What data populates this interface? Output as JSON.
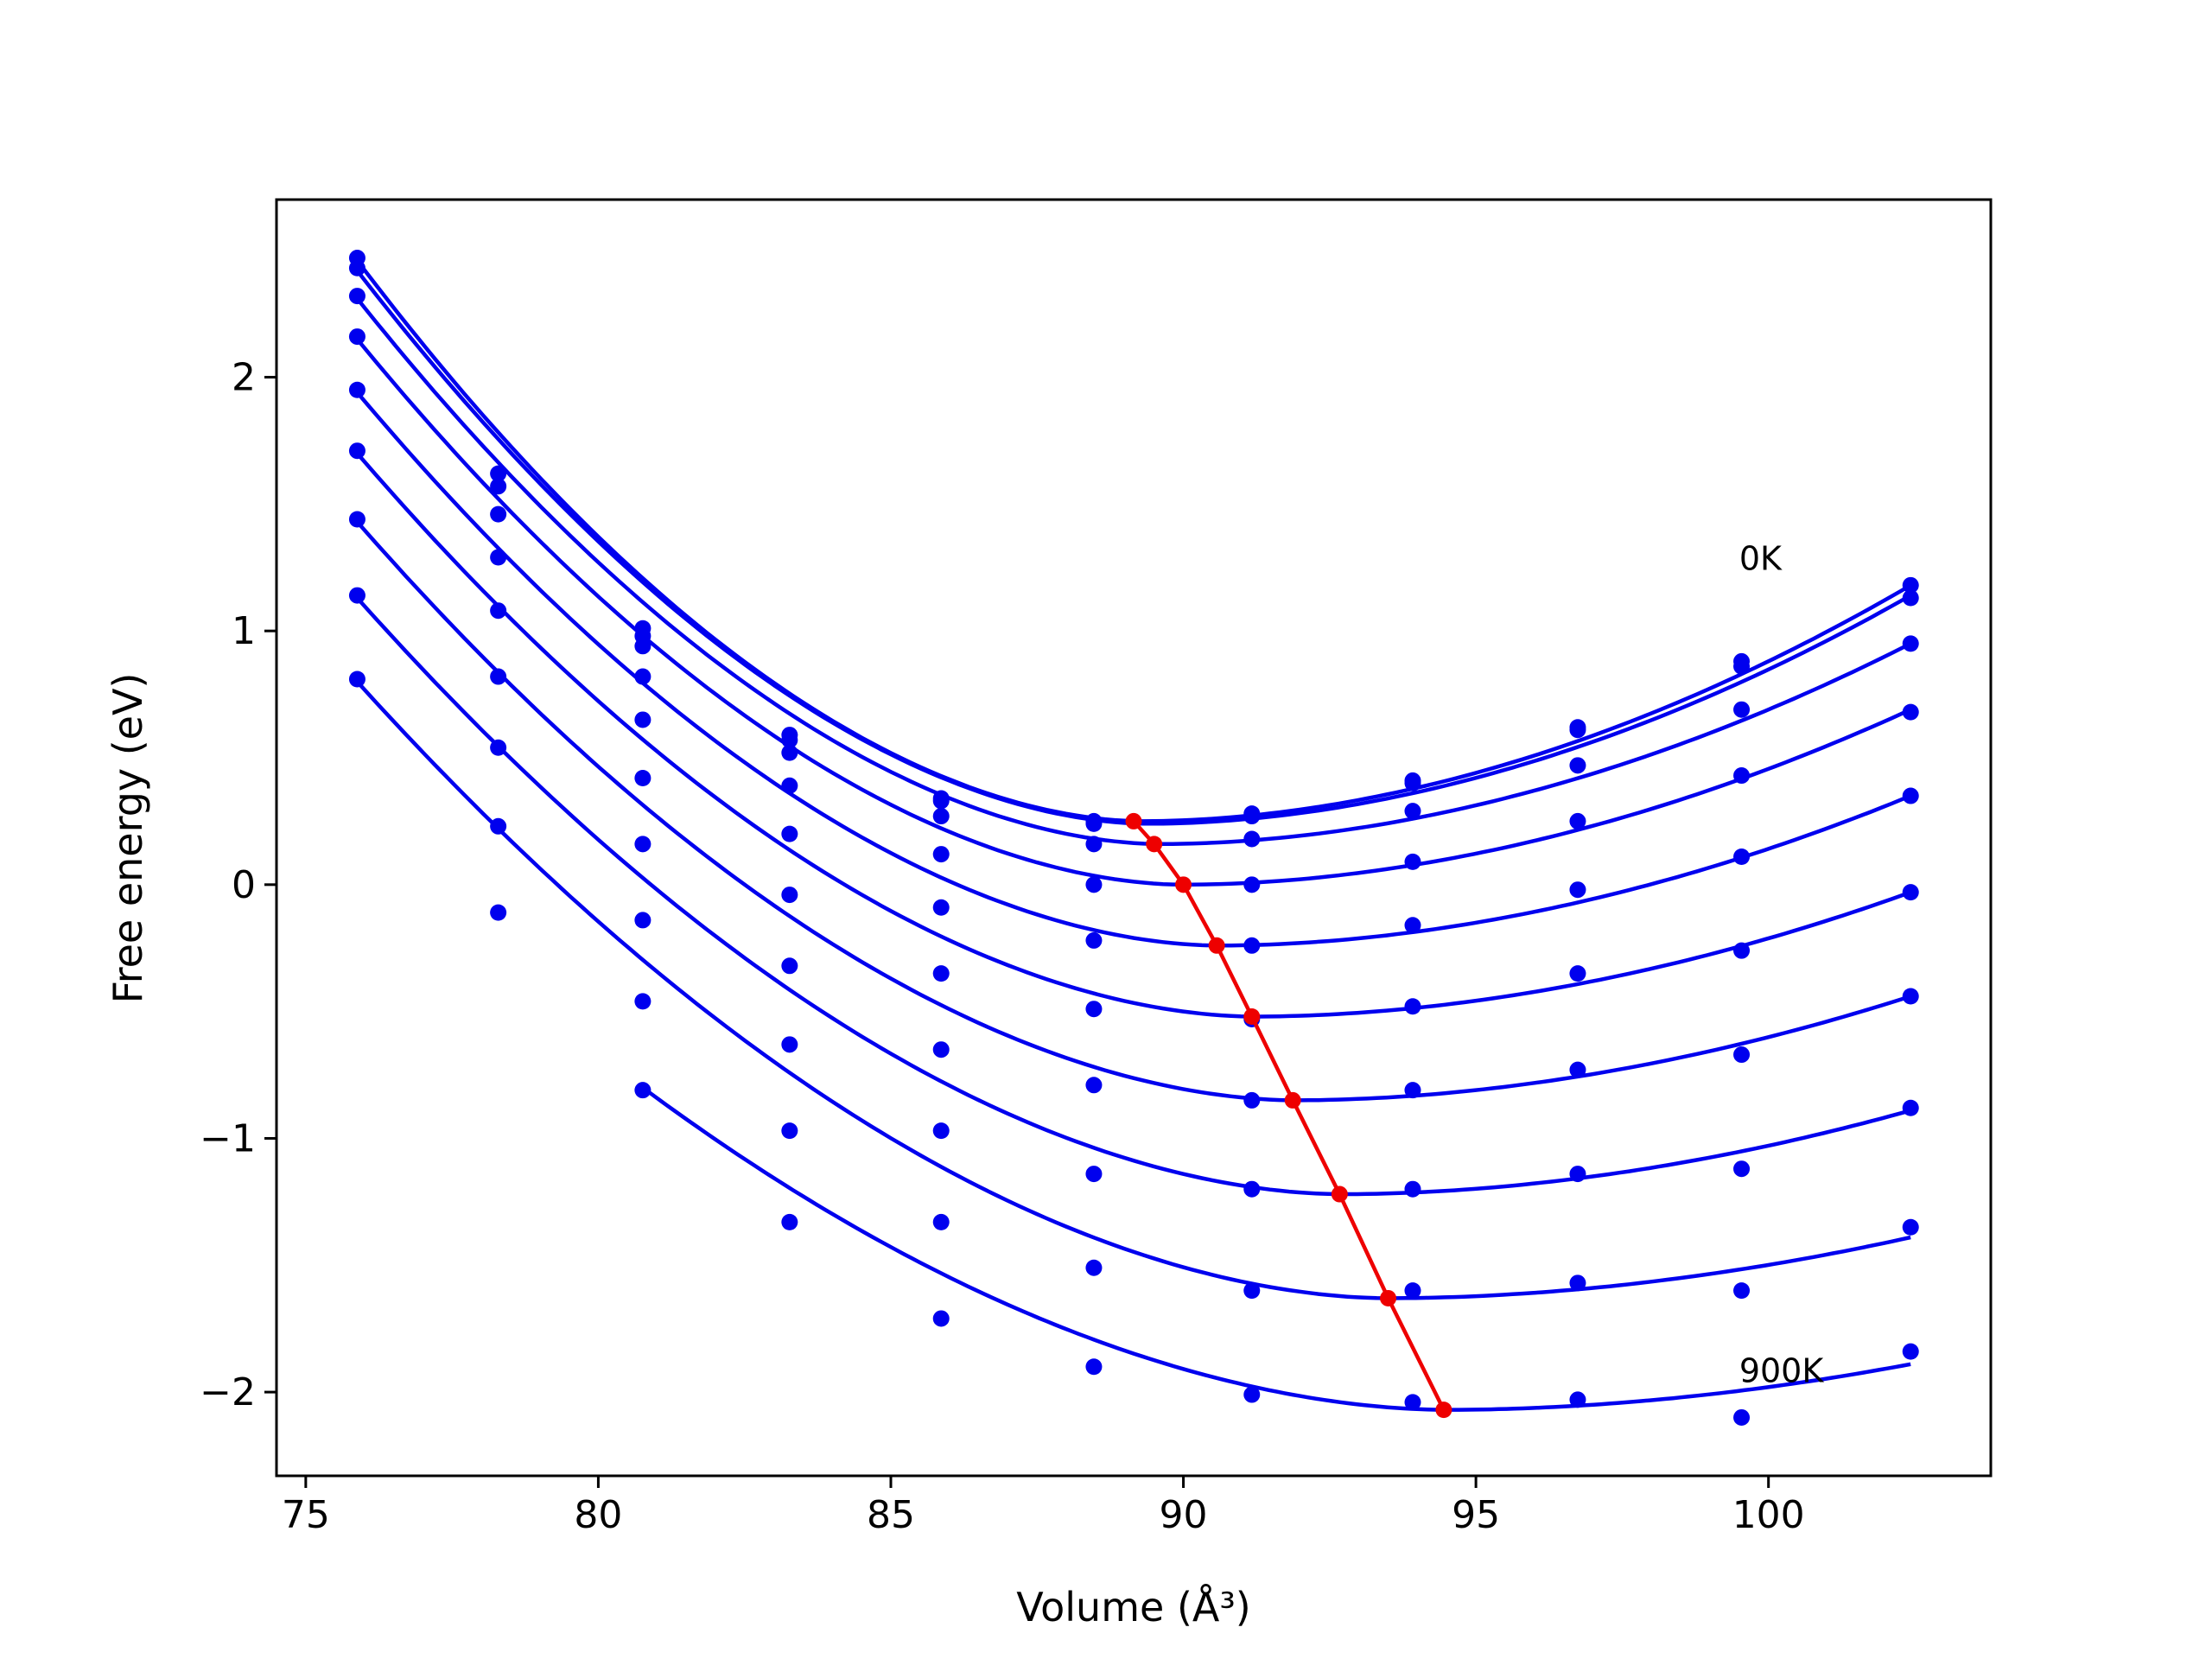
{
  "chart_data": {
    "type": "scatter",
    "title": "",
    "xlabel": "Volume (Å³)",
    "ylabel": "Free energy (eV)",
    "xlim": [
      74.5,
      103.8
    ],
    "ylim": [
      -2.33,
      2.7
    ],
    "xticks": [
      75,
      80,
      85,
      90,
      95,
      100
    ],
    "xtick_labels": [
      "75",
      "80",
      "85",
      "90",
      "95",
      "100"
    ],
    "yticks": [
      -2,
      -1,
      0,
      1,
      2
    ],
    "ytick_labels": [
      "−2",
      "−1",
      "0",
      "1",
      "2"
    ],
    "grid": false,
    "legend": "none",
    "x": [
      75.88,
      78.29,
      80.76,
      83.27,
      85.86,
      88.47,
      91.17,
      93.92,
      96.74,
      99.54,
      102.43
    ],
    "series": [
      {
        "color": "#0000ee",
        "points": [
          2.47,
          1.62,
          1.01,
          0.59,
          0.34,
          0.25,
          0.28,
          0.41,
          0.62,
          0.88,
          1.18
        ],
        "fit": {
          "e_min": 0.25,
          "v_min": 89.3,
          "left_at_75_88": 2.46,
          "right_at_102_43": 1.18
        }
      },
      {
        "color": "#0000ee",
        "points": [
          2.43,
          1.57,
          0.98,
          0.57,
          0.33,
          0.24,
          0.27,
          0.4,
          0.61,
          0.86,
          1.13
        ],
        "fit": {
          "e_min": 0.24,
          "v_min": 89.4,
          "left_at_75_88": 2.42,
          "right_at_102_43": 1.14
        }
      },
      {
        "color": "#0000ee",
        "points": [
          2.32,
          1.46,
          0.94,
          0.52,
          0.27,
          0.16,
          0.18,
          0.29,
          0.47,
          0.69,
          0.95
        ],
        "fit": {
          "e_min": 0.16,
          "v_min": 89.6,
          "left_at_75_88": 2.31,
          "right_at_102_43": 0.95
        }
      },
      {
        "color": "#0000ee",
        "points": [
          2.16,
          1.29,
          0.82,
          0.39,
          0.12,
          0.0,
          0.0,
          0.09,
          0.25,
          0.43,
          0.68
        ],
        "fit": {
          "e_min": 0.0,
          "v_min": 90.0,
          "left_at_75_88": 2.15,
          "right_at_102_43": 0.69
        }
      },
      {
        "color": "#0000ee",
        "points": [
          1.95,
          1.08,
          0.65,
          0.2,
          -0.09,
          -0.22,
          -0.24,
          -0.16,
          -0.02,
          0.11,
          0.35
        ],
        "fit": {
          "e_min": -0.24,
          "v_min": 90.6,
          "left_at_75_88": 1.94,
          "right_at_102_43": 0.35
        }
      },
      {
        "color": "#0000ee",
        "points": [
          1.71,
          0.82,
          0.42,
          -0.04,
          -0.35,
          -0.49,
          -0.53,
          -0.48,
          -0.35,
          -0.26,
          -0.03
        ],
        "fit": {
          "e_min": -0.52,
          "v_min": 91.2,
          "left_at_75_88": 1.7,
          "right_at_102_43": -0.03
        }
      },
      {
        "color": "#0000ee",
        "points": [
          1.44,
          0.54,
          0.16,
          -0.32,
          -0.65,
          -0.79,
          -0.85,
          -0.81,
          -0.73,
          -0.67,
          -0.44
        ],
        "fit": {
          "e_min": -0.85,
          "v_min": 91.9,
          "left_at_75_88": 1.43,
          "right_at_102_43": -0.44
        }
      },
      {
        "color": "#0000ee",
        "points": [
          1.14,
          0.23,
          -0.14,
          -0.63,
          -0.97,
          -1.14,
          -1.2,
          -1.2,
          -1.14,
          -1.12,
          -0.88
        ],
        "fit": {
          "e_min": -1.22,
          "v_min": 92.7,
          "left_at_75_88": 1.13,
          "right_at_102_43": -0.89
        }
      },
      {
        "color": "#0000ee",
        "points": [
          0.81,
          -0.11,
          -0.46,
          -0.97,
          -1.33,
          -1.51,
          -1.6,
          -1.6,
          -1.57,
          -1.6,
          -1.35
        ],
        "fit": {
          "e_min": -1.63,
          "v_min": 93.5,
          "left_at_75_88": 0.8,
          "right_at_102_43": -1.39
        }
      },
      {
        "color": "#0000ee",
        "points": [
          null,
          null,
          -0.81,
          -1.33,
          -1.71,
          -1.9,
          -2.01,
          -2.04,
          -2.03,
          -2.1,
          -1.84
        ],
        "fit": {
          "e_min": -2.07,
          "v_min": 94.5,
          "left_at_80_76": -0.8,
          "right_at_102_43": -1.89
        }
      }
    ],
    "minima_path": {
      "color": "#ee0000",
      "x": [
        89.15,
        89.5,
        90.0,
        90.57,
        91.17,
        91.87,
        92.67,
        93.5,
        94.45
      ],
      "y": [
        0.25,
        0.16,
        0.0,
        -0.24,
        -0.52,
        -0.85,
        -1.22,
        -1.63,
        -2.07
      ]
    },
    "annotations": [
      {
        "text": "0K",
        "x": 99.5,
        "y": 1.24
      },
      {
        "text": "900K",
        "x": 99.5,
        "y": -1.96
      }
    ]
  }
}
